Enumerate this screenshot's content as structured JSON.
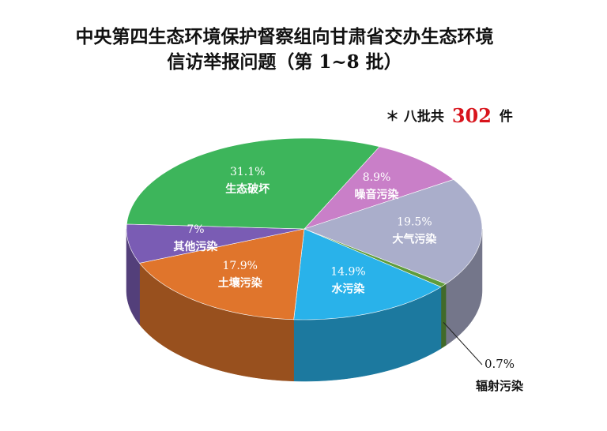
{
  "chart_data": {
    "type": "pie",
    "title": "中央第四生态环境保护督察组向甘肃省交办生态环境",
    "subtitle": "信访举报问题（第 1~8 批）",
    "note": {
      "prefix": "＊ 八批共",
      "count": 302,
      "unit": "件"
    },
    "categories": [
      "噪音污染",
      "大气污染",
      "辐射污染",
      "水污染",
      "土壤污染",
      "其他污染",
      "生态破坏"
    ],
    "values": [
      8.9,
      19.5,
      0.7,
      14.9,
      17.9,
      7,
      31.1
    ],
    "value_labels": [
      "8.9%",
      "19.5%",
      "0.7%",
      "14.9%",
      "17.9%",
      "7%",
      "31.1%"
    ],
    "colors": [
      "#c97fc8",
      "#aaaecb",
      "#5f9c3c",
      "#29b2ea",
      "#e0752c",
      "#7a5cb4",
      "#3db55b"
    ]
  }
}
